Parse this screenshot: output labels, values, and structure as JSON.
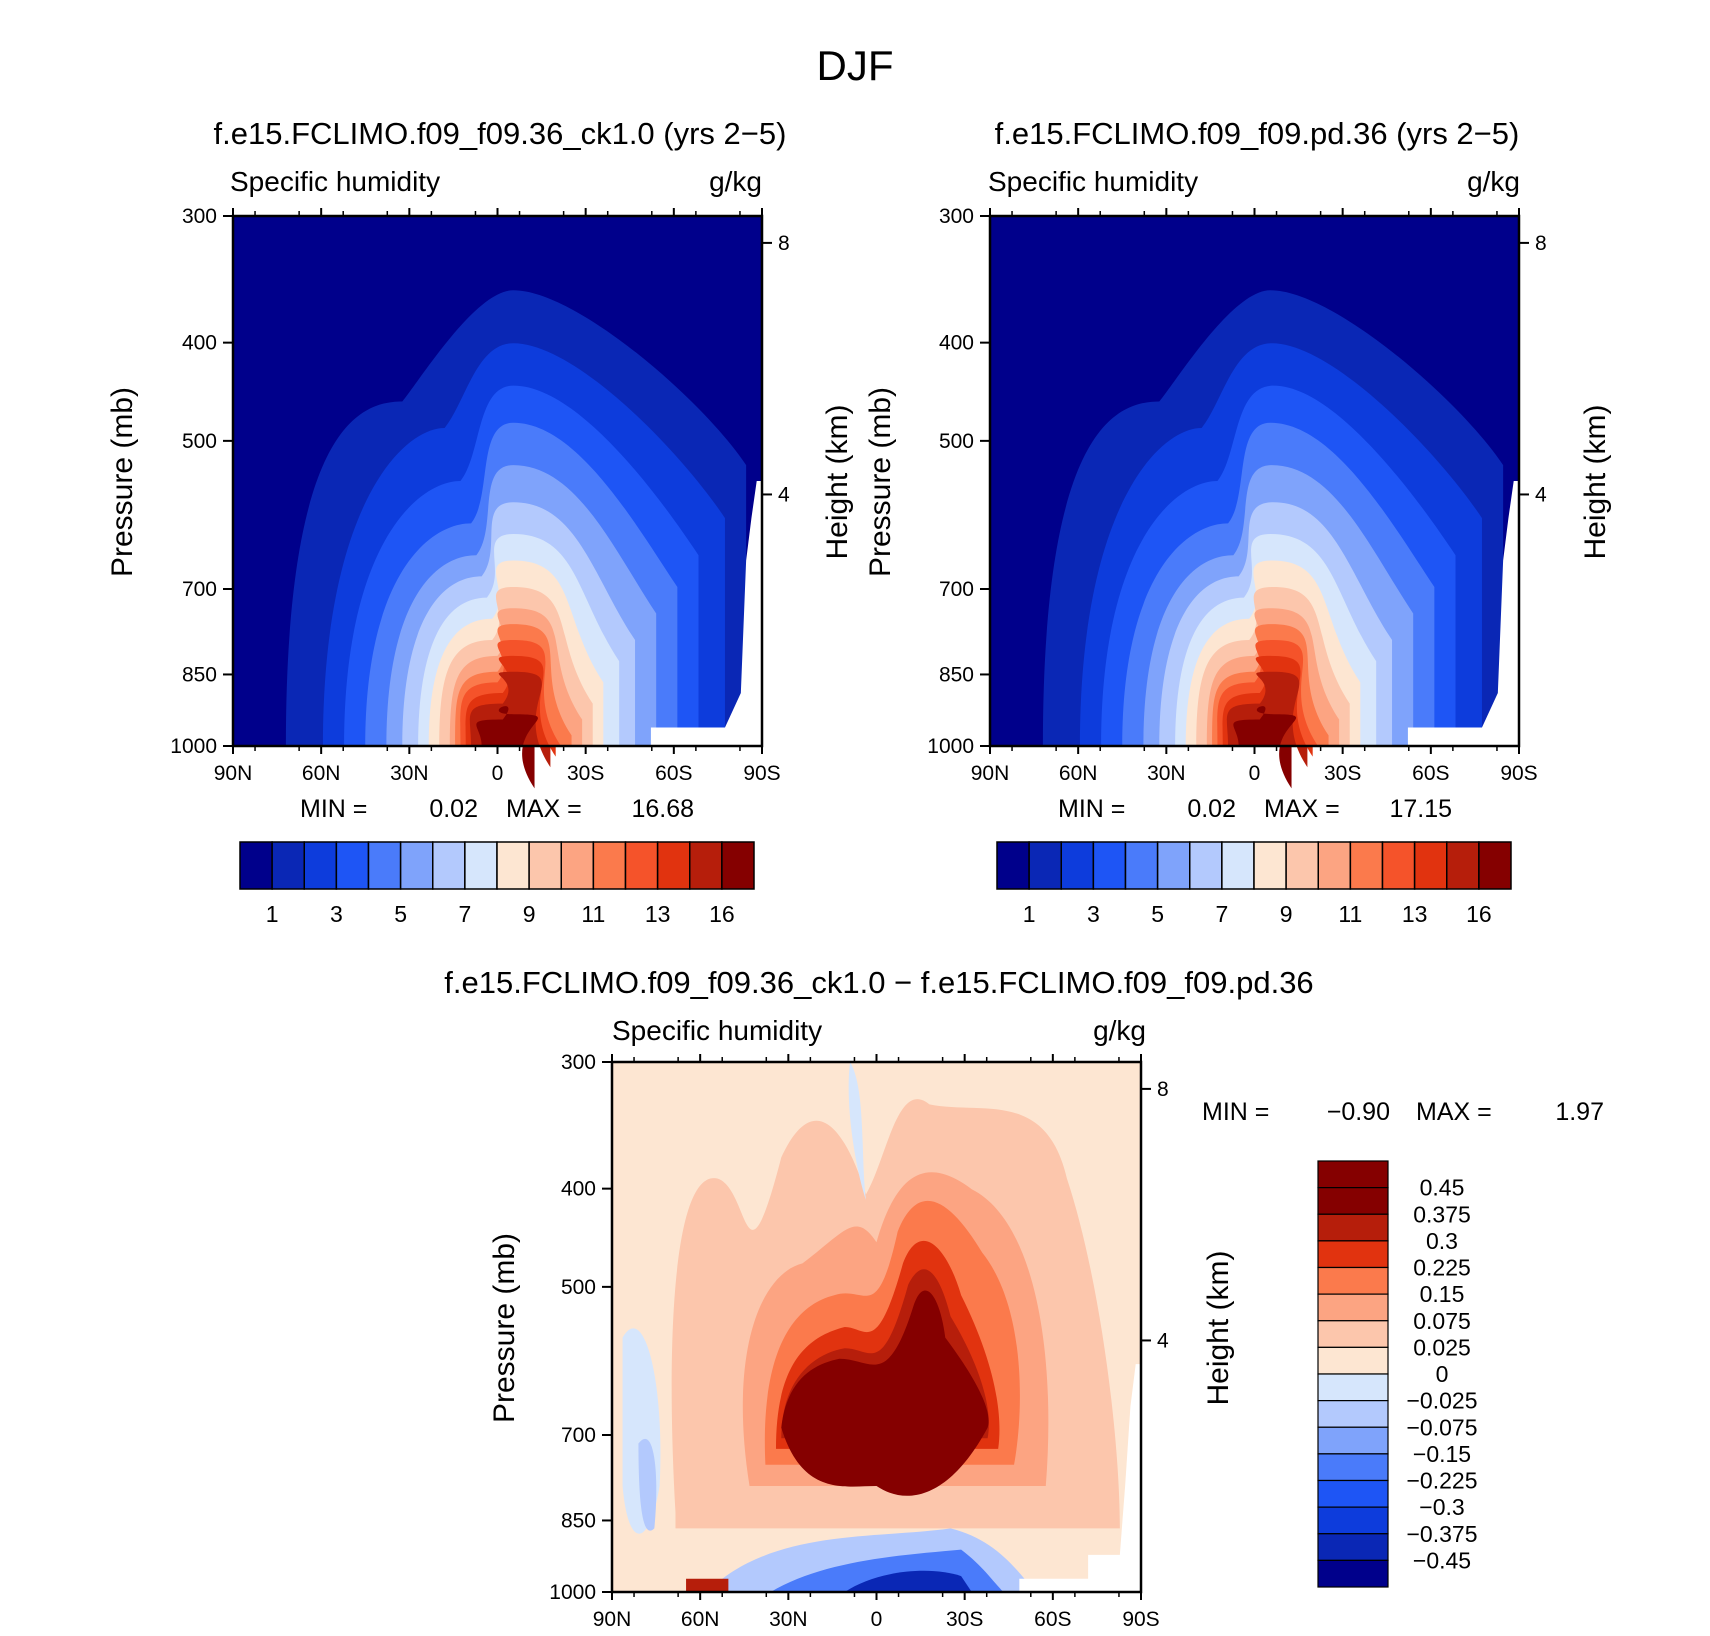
{
  "figure": {
    "title": "DJF"
  },
  "chart_data": [
    {
      "type": "heatmap",
      "title": "f.e15.FCLIMO.f09_f09.36_ck1.0 (yrs 2−5)",
      "left_label": "Specific humidity",
      "right_label": "g/kg",
      "ylabel": "Pressure (mb)",
      "ylabel_right": "Height (km)",
      "x_ticks": [
        "90N",
        "60N",
        "30N",
        "0",
        "30S",
        "60S",
        "90S"
      ],
      "y_ticks": [
        "300",
        "400",
        "500",
        "700",
        "850",
        "1000"
      ],
      "y_right_ticks": [
        "8",
        "4"
      ],
      "min_label": "MIN =",
      "min_value": "0.02",
      "max_label": "MAX =",
      "max_value": "16.68",
      "colorbar_labels": [
        "1",
        "3",
        "5",
        "7",
        "9",
        "11",
        "13",
        "16"
      ],
      "colors": [
        "#00008b",
        "#0a27b5",
        "#0d3cdc",
        "#1e55f5",
        "#4a7bfa",
        "#7fa3fb",
        "#b3c9fd",
        "#d6e6fc",
        "#fde6d2",
        "#fcc6ac",
        "#fca482",
        "#fb7a4c",
        "#f5532a",
        "#e1330f",
        "#b61e0b",
        "#850000"
      ]
    },
    {
      "type": "heatmap",
      "title": "f.e15.FCLIMO.f09_f09.pd.36 (yrs 2−5)",
      "left_label": "Specific humidity",
      "right_label": "g/kg",
      "ylabel": "Pressure (mb)",
      "ylabel_right": "Height (km)",
      "x_ticks": [
        "90N",
        "60N",
        "30N",
        "0",
        "30S",
        "60S",
        "90S"
      ],
      "y_ticks": [
        "300",
        "400",
        "500",
        "700",
        "850",
        "1000"
      ],
      "y_right_ticks": [
        "8",
        "4"
      ],
      "min_label": "MIN =",
      "min_value": "0.02",
      "max_label": "MAX =",
      "max_value": "17.15",
      "colorbar_labels": [
        "1",
        "3",
        "5",
        "7",
        "9",
        "11",
        "13",
        "16"
      ]
    },
    {
      "type": "heatmap",
      "title": "f.e15.FCLIMO.f09_f09.36_ck1.0 − f.e15.FCLIMO.f09_f09.pd.36",
      "left_label": "Specific humidity",
      "right_label": "g/kg",
      "ylabel": "Pressure (mb)",
      "ylabel_right": "Height (km)",
      "x_ticks": [
        "90N",
        "60N",
        "30N",
        "0",
        "30S",
        "60S",
        "90S"
      ],
      "y_ticks": [
        "300",
        "400",
        "500",
        "700",
        "850",
        "1000"
      ],
      "y_right_ticks": [
        "8",
        "4"
      ],
      "min_label": "MIN =",
      "min_value": "−0.90",
      "max_label": "MAX =",
      "max_value": "1.97",
      "colorbar_labels": [
        "0.45",
        "0.375",
        "0.3",
        "0.225",
        "0.15",
        "0.075",
        "0.025",
        "0",
        "−0.025",
        "−0.075",
        "−0.15",
        "−0.225",
        "−0.3",
        "−0.375",
        "−0.45"
      ],
      "colors": [
        "#850000",
        "#b61e0b",
        "#e1330f",
        "#fb7a4c",
        "#fca482",
        "#fcc6ac",
        "#fde6d2",
        "#d6e6fc",
        "#b3c9fd",
        "#7fa3fb",
        "#4a7bfa",
        "#1e55f5",
        "#0d3cdc",
        "#0a27b5",
        "#00008b"
      ]
    }
  ]
}
